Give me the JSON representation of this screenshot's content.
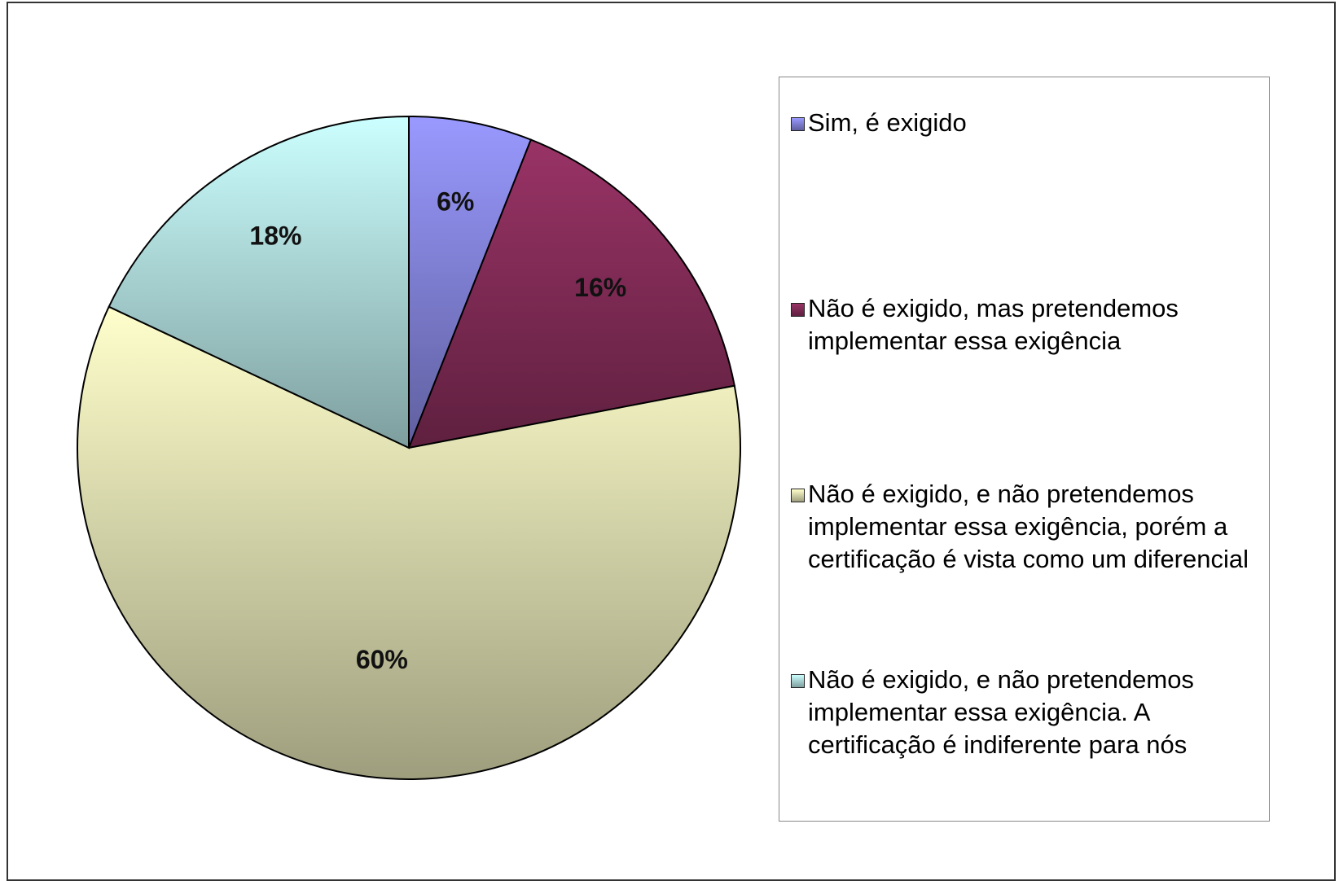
{
  "chart_data": {
    "type": "pie",
    "categories": [
      "Sim, é exigido",
      "Não é exigido, mas pretendemos implementar essa exigência",
      "Não é exigido, e não pretendemos implementar essa exigência, porém a certificação é vista como um diferencial",
      "Não é exigido, e não pretendemos implementar essa exigência. A certificação é indiferente para nós"
    ],
    "values": [
      6,
      16,
      60,
      18
    ],
    "value_labels": [
      "6%",
      "16%",
      "60%",
      "18%"
    ],
    "colors": [
      "#9999ff",
      "#993366",
      "#ffffcc",
      "#ccffff"
    ],
    "legend": "right"
  }
}
